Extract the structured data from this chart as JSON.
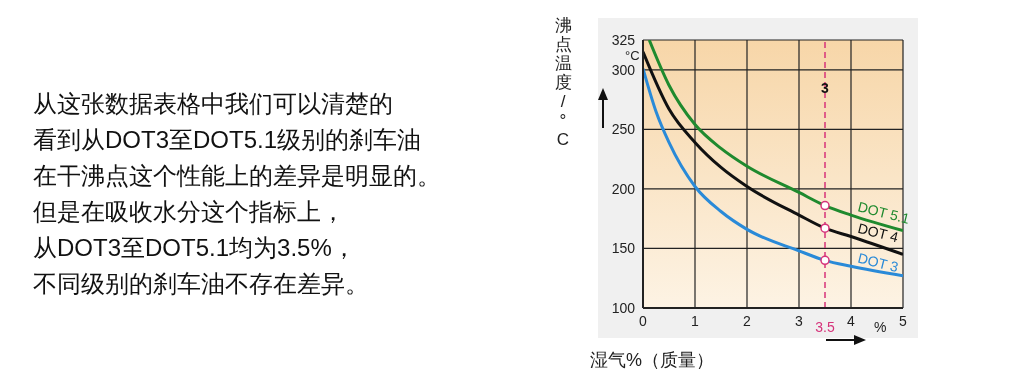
{
  "chart_data": {
    "type": "line",
    "ylabel": "沸点温度/°C",
    "xlabel": "湿气%（质量）",
    "xlim": [
      0,
      5
    ],
    "xticks": [
      0,
      1,
      2,
      3,
      4,
      5
    ],
    "ylim": [
      100,
      325
    ],
    "yticks": [
      100,
      150,
      200,
      250,
      300,
      325
    ],
    "grid": true,
    "marker": "none",
    "line_style": "solid",
    "series": [
      {
        "name": "DOT 5.1",
        "color": "#1f8a2e",
        "x": [
          0.12,
          0.5,
          1,
          1.5,
          2,
          3,
          3.5,
          4,
          5
        ],
        "values": [
          325,
          287,
          254,
          234,
          219,
          197,
          186,
          178,
          165
        ]
      },
      {
        "name": "DOT 4",
        "color": "#111111",
        "x": [
          0,
          0.5,
          1,
          1.5,
          2,
          3,
          3.5,
          4,
          5
        ],
        "values": [
          315,
          267,
          239,
          218,
          202,
          178,
          167,
          160,
          145
        ]
      },
      {
        "name": "DOT 3",
        "color": "#2a8ad8",
        "x": [
          0,
          0.25,
          0.5,
          1,
          1.5,
          2,
          3,
          3.5,
          4,
          5
        ],
        "values": [
          301,
          265,
          239,
          202,
          181,
          166,
          148,
          140,
          135,
          127
        ]
      },
      {
        "type": "scatter",
        "color": "#d6337a",
        "marker": "circle",
        "x": [
          3.5,
          3.5,
          3.5
        ],
        "values": [
          186,
          167,
          140
        ]
      }
    ],
    "ref_lines": [
      {
        "axis": "x",
        "value": 3.5,
        "label": "3.5",
        "color": "#d6337a",
        "line_style": "dashed"
      }
    ],
    "annotations": [
      "从这张数据表格中我们可以清楚的",
      "看到从DOT3至DOT5.1级别的刹车油",
      "在干沸点这个性能上的差异是明显的。",
      "但是在吸收水分这个指标上，",
      "从DOT3至DOT5.1均为3.5%，",
      "不同级别的刹车油不存在差异。",
      {
        "text": "3",
        "x": 3.5,
        "y": 285
      },
      "°C",
      "%"
    ]
  }
}
